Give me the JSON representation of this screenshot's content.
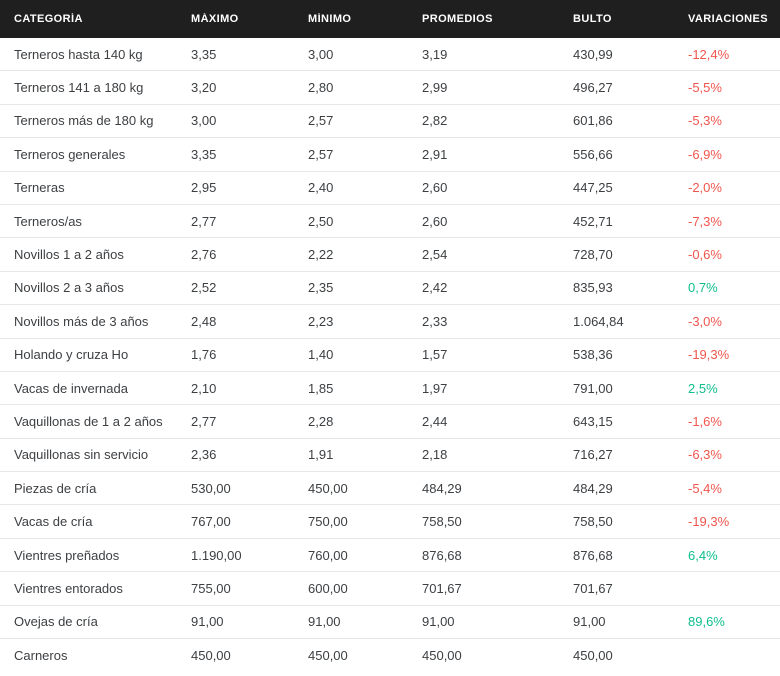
{
  "colors": {
    "negative": "#f0564e",
    "positive": "#0ebe8c",
    "header_bg": "#1f1f1f",
    "row_text": "#3d4043",
    "divider": "#e7e7e7"
  },
  "chart_data": {
    "type": "table",
    "columns": [
      "CATEGORÍA",
      "MÁXIMO",
      "MÍNIMO",
      "PROMEDIOS",
      "BULTO",
      "VARIACIONES"
    ],
    "rows": [
      {
        "categoria": "Terneros hasta 140 kg",
        "maximo": "3,35",
        "minimo": "3,00",
        "promedios": "3,19",
        "bulto": "430,99",
        "variacion": "-12,4%",
        "trend": "down"
      },
      {
        "categoria": "Terneros 141 a 180 kg",
        "maximo": "3,20",
        "minimo": "2,80",
        "promedios": "2,99",
        "bulto": "496,27",
        "variacion": "-5,5%",
        "trend": "down"
      },
      {
        "categoria": "Terneros más de 180 kg",
        "maximo": "3,00",
        "minimo": "2,57",
        "promedios": "2,82",
        "bulto": "601,86",
        "variacion": "-5,3%",
        "trend": "down"
      },
      {
        "categoria": "Terneros generales",
        "maximo": "3,35",
        "minimo": "2,57",
        "promedios": "2,91",
        "bulto": "556,66",
        "variacion": "-6,9%",
        "trend": "down"
      },
      {
        "categoria": "Terneras",
        "maximo": "2,95",
        "minimo": "2,40",
        "promedios": "2,60",
        "bulto": "447,25",
        "variacion": "-2,0%",
        "trend": "down"
      },
      {
        "categoria": "Terneros/as",
        "maximo": "2,77",
        "minimo": "2,50",
        "promedios": "2,60",
        "bulto": "452,71",
        "variacion": "-7,3%",
        "trend": "down"
      },
      {
        "categoria": "Novillos 1 a 2 años",
        "maximo": "2,76",
        "minimo": "2,22",
        "promedios": "2,54",
        "bulto": "728,70",
        "variacion": "-0,6%",
        "trend": "down"
      },
      {
        "categoria": "Novillos 2 a 3 años",
        "maximo": "2,52",
        "minimo": "2,35",
        "promedios": "2,42",
        "bulto": "835,93",
        "variacion": "0,7%",
        "trend": "up"
      },
      {
        "categoria": "Novillos más de 3 años",
        "maximo": "2,48",
        "minimo": "2,23",
        "promedios": "2,33",
        "bulto": "1.064,84",
        "variacion": "-3,0%",
        "trend": "down"
      },
      {
        "categoria": "Holando y cruza Ho",
        "maximo": "1,76",
        "minimo": "1,40",
        "promedios": "1,57",
        "bulto": "538,36",
        "variacion": "-19,3%",
        "trend": "down"
      },
      {
        "categoria": "Vacas de invernada",
        "maximo": "2,10",
        "minimo": "1,85",
        "promedios": "1,97",
        "bulto": "791,00",
        "variacion": "2,5%",
        "trend": "up"
      },
      {
        "categoria": "Vaquillonas de 1 a 2 años",
        "maximo": "2,77",
        "minimo": "2,28",
        "promedios": "2,44",
        "bulto": "643,15",
        "variacion": "-1,6%",
        "trend": "down"
      },
      {
        "categoria": "Vaquillonas sin servicio",
        "maximo": "2,36",
        "minimo": "1,91",
        "promedios": "2,18",
        "bulto": "716,27",
        "variacion": "-6,3%",
        "trend": "down"
      },
      {
        "categoria": "Piezas de cría",
        "maximo": "530,00",
        "minimo": "450,00",
        "promedios": "484,29",
        "bulto": "484,29",
        "variacion": "-5,4%",
        "trend": "down"
      },
      {
        "categoria": "Vacas de cría",
        "maximo": "767,00",
        "minimo": "750,00",
        "promedios": "758,50",
        "bulto": "758,50",
        "variacion": "-19,3%",
        "trend": "down"
      },
      {
        "categoria": "Vientres preñados",
        "maximo": "1.190,00",
        "minimo": "760,00",
        "promedios": "876,68",
        "bulto": "876,68",
        "variacion": "6,4%",
        "trend": "up"
      },
      {
        "categoria": "Vientres entorados",
        "maximo": "755,00",
        "minimo": "600,00",
        "promedios": "701,67",
        "bulto": "701,67",
        "variacion": "",
        "trend": "none"
      },
      {
        "categoria": "Ovejas de cría",
        "maximo": "91,00",
        "minimo": "91,00",
        "promedios": "91,00",
        "bulto": "91,00",
        "variacion": "89,6%",
        "trend": "up"
      },
      {
        "categoria": "Carneros",
        "maximo": "450,00",
        "minimo": "450,00",
        "promedios": "450,00",
        "bulto": "450,00",
        "variacion": "",
        "trend": "none"
      }
    ]
  }
}
